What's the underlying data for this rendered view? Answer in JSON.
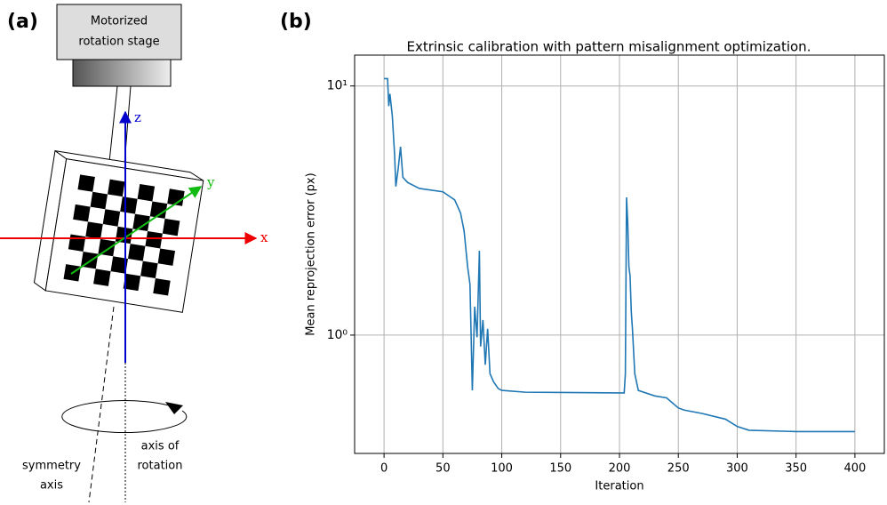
{
  "panel_a": {
    "label": "(a)",
    "stage_label": [
      "Motorized",
      "rotation stage"
    ],
    "axes": {
      "x": "x",
      "y": "y",
      "z": "z"
    },
    "symmetry_axis": [
      "symmetry",
      "axis"
    ],
    "rotation_axis": [
      "axis of",
      "rotation"
    ]
  },
  "panel_b_label": "(b)",
  "chart_data": {
    "type": "line",
    "title": "Extrinsic calibration with pattern misalignment optimization.",
    "xlabel": "Iteration",
    "ylabel": "Mean reprojection error (px)",
    "color": "#1f77b4",
    "log_y": true,
    "grid": true,
    "x": [
      0,
      3,
      4,
      5,
      7,
      9,
      10,
      12,
      14,
      16,
      20,
      30,
      50,
      60,
      65,
      68,
      71,
      73,
      75,
      77,
      79,
      81,
      82,
      84,
      86,
      88,
      90,
      93,
      97,
      100,
      120,
      200,
      204,
      205,
      206,
      207,
      208,
      209,
      210,
      211,
      213,
      216,
      230,
      240,
      250,
      255,
      270,
      290,
      300,
      310,
      350,
      400
    ],
    "values": [
      10.7,
      10.7,
      8.3,
      9.3,
      7.6,
      5.26,
      3.95,
      4.65,
      5.7,
      4.3,
      4.1,
      3.88,
      3.76,
      3.49,
      3.09,
      2.62,
      1.88,
      1.6,
      0.6,
      1.3,
      0.98,
      2.18,
      0.9,
      1.15,
      0.76,
      1.06,
      0.7,
      0.65,
      0.61,
      0.6,
      0.59,
      0.586,
      0.586,
      0.7,
      3.57,
      2.84,
      1.88,
      1.73,
      1.25,
      1.06,
      0.7,
      0.6,
      0.57,
      0.56,
      0.51,
      0.5,
      0.485,
      0.46,
      0.43,
      0.415,
      0.41,
      0.41
    ],
    "xlim": [
      -25,
      425
    ],
    "xticks": [
      0,
      50,
      100,
      150,
      200,
      250,
      300,
      350,
      400
    ],
    "ylim": [
      0.335,
      13.3
    ],
    "yticks": [
      {
        "value": 1,
        "label": "10⁰"
      },
      {
        "value": 10,
        "label": "10¹"
      }
    ]
  }
}
